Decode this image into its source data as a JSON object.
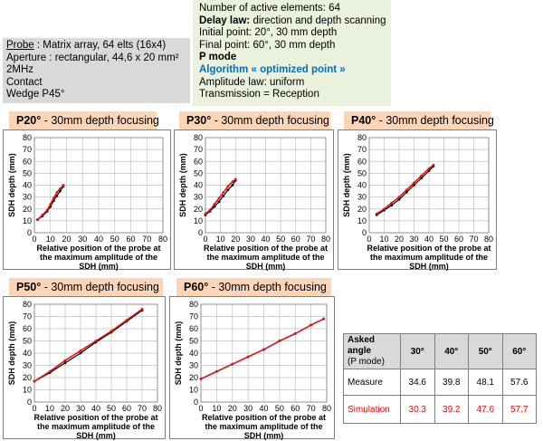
{
  "probe": {
    "label": "Probe",
    "model": " : Matrix array, 64 elts (16x4)",
    "aperture": "Aperture : rectangular, 44,6 x 20 mm²",
    "frequency": "2MHz",
    "contact": "Contact",
    "wedge": "Wedge P45°"
  },
  "params": {
    "active_elements": "Number of active elements: 64",
    "delay_law_label": "Delay law:",
    "delay_law_value": " direction and depth scanning",
    "initial_point": "Initial point: 20°, 30 mm depth",
    "final_point": "Final point: 60°, 30 mm depth",
    "mode": "P mode",
    "algorithm": "Algorithm « optimized point »",
    "amplitude_law": "Amplitude law: uniform",
    "transmission": "Transmission = Reception"
  },
  "colors": {
    "measure": "#000000",
    "simulation": "#e0161b",
    "tab": "#fbd5b5",
    "probe_bg": "#d9d9d9",
    "params_bg": "#eaf1dd",
    "algo": "#0070c0"
  },
  "charts_common": {
    "ylabel": "SDH depth (mm)",
    "xlabel_line1": "Relative position of the probe at",
    "xlabel_line2": "the maximum amplitude of the",
    "xlabel_line3": "SDH (mm)"
  },
  "chart_data": [
    {
      "type": "line",
      "tab_bold": "P20°",
      "tab_rest": " - 30mm depth focusing",
      "xlim": [
        0,
        80
      ],
      "ylim": [
        0,
        80
      ],
      "xticks": [
        "0",
        "10",
        "20",
        "30",
        "40",
        "50",
        "60",
        "70",
        "80"
      ],
      "yticks": [
        "0",
        "10",
        "20",
        "30",
        "40",
        "50",
        "60",
        "70",
        "80"
      ],
      "series": [
        {
          "key": "measure",
          "x": [
            2,
            5,
            8,
            10,
            12,
            14,
            16,
            18
          ],
          "y": [
            11,
            14,
            18,
            22,
            27,
            31,
            35,
            39
          ]
        },
        {
          "key": "simulation",
          "x": [
            2,
            5,
            8,
            10,
            12,
            14,
            16,
            18
          ],
          "y": [
            11,
            15,
            19,
            24,
            29,
            34,
            37,
            40
          ]
        }
      ]
    },
    {
      "type": "line",
      "tab_bold": "P30°",
      "tab_rest": " - 30mm depth focusing",
      "xlim": [
        0,
        80
      ],
      "ylim": [
        0,
        80
      ],
      "xticks": [
        "0",
        "10",
        "20",
        "30",
        "40",
        "50",
        "60",
        "70",
        "80"
      ],
      "yticks": [
        "0",
        "10",
        "20",
        "30",
        "40",
        "50",
        "60",
        "70",
        "80"
      ],
      "series": [
        {
          "key": "measure",
          "x": [
            0,
            3,
            6,
            9,
            12,
            15,
            18,
            20
          ],
          "y": [
            15,
            18,
            22,
            26,
            31,
            36,
            40,
            44
          ]
        },
        {
          "key": "simulation",
          "x": [
            0,
            3,
            6,
            9,
            12,
            15,
            18,
            20
          ],
          "y": [
            16,
            19,
            24,
            29,
            34,
            39,
            43,
            45
          ]
        }
      ]
    },
    {
      "type": "line",
      "tab_bold": "P40°",
      "tab_rest": " - 30mm depth focusing",
      "xlim": [
        0,
        80
      ],
      "ylim": [
        0,
        80
      ],
      "xticks": [
        "0",
        "10",
        "20",
        "30",
        "40",
        "50",
        "60",
        "70",
        "80"
      ],
      "yticks": [
        "0",
        "10",
        "20",
        "30",
        "40",
        "50",
        "60",
        "70",
        "80"
      ],
      "series": [
        {
          "key": "measure",
          "x": [
            5,
            10,
            15,
            20,
            25,
            30,
            35,
            40,
            43
          ],
          "y": [
            15,
            19,
            23,
            28,
            34,
            40,
            46,
            52,
            56
          ]
        },
        {
          "key": "simulation",
          "x": [
            5,
            10,
            15,
            20,
            25,
            30,
            35,
            40,
            43
          ],
          "y": [
            16,
            20,
            25,
            30,
            36,
            42,
            48,
            54,
            57
          ]
        }
      ]
    },
    {
      "type": "line",
      "tab_bold": "P50°",
      "tab_rest": " - 30mm depth focusing",
      "xlim": [
        0,
        80
      ],
      "ylim": [
        0,
        80
      ],
      "xticks": [
        "0",
        "10",
        "20",
        "30",
        "40",
        "50",
        "60",
        "70",
        "80"
      ],
      "yticks": [
        "0",
        "10",
        "20",
        "30",
        "40",
        "50",
        "60",
        "70",
        "80"
      ],
      "series": [
        {
          "key": "measure",
          "x": [
            0,
            10,
            20,
            30,
            40,
            50,
            60,
            70
          ],
          "y": [
            17,
            24,
            32,
            40,
            49,
            57,
            66,
            75
          ]
        },
        {
          "key": "simulation",
          "x": [
            0,
            10,
            20,
            30,
            40,
            50,
            60,
            70
          ],
          "y": [
            17,
            25,
            34,
            42,
            50,
            58,
            67,
            76
          ]
        }
      ]
    },
    {
      "type": "line",
      "tab_bold": "P60°",
      "tab_rest": " - 30mm depth focusing",
      "xlim": [
        0,
        80
      ],
      "ylim": [
        0,
        80
      ],
      "xticks": [
        "0",
        "10",
        "20",
        "30",
        "40",
        "50",
        "60",
        "70",
        "80"
      ],
      "yticks": [
        "0",
        "10",
        "20",
        "30",
        "40",
        "50",
        "60",
        "70",
        "80"
      ],
      "series": [
        {
          "key": "measure",
          "x": [
            0,
            10,
            20,
            30,
            40,
            50,
            60,
            70,
            78
          ],
          "y": [
            19,
            25,
            31,
            37,
            43,
            50,
            56,
            63,
            68
          ]
        },
        {
          "key": "simulation",
          "x": [
            0,
            10,
            20,
            30,
            40,
            50,
            60,
            70,
            78
          ],
          "y": [
            19,
            25,
            31,
            37,
            43,
            50,
            56,
            63,
            68
          ]
        }
      ]
    }
  ],
  "results_table": {
    "header_line1": "Asked",
    "header_line2": "angle",
    "header_line3": "(P mode)",
    "angles": [
      "30°",
      "40°",
      "50°",
      "60°"
    ],
    "measure_label": "Measure",
    "measure": [
      "34.6",
      "39.8",
      "48.1",
      "57.6"
    ],
    "simulation_label": "Simulation",
    "simulation": [
      "30.3",
      "39.2",
      "47.6",
      "57.7"
    ]
  }
}
